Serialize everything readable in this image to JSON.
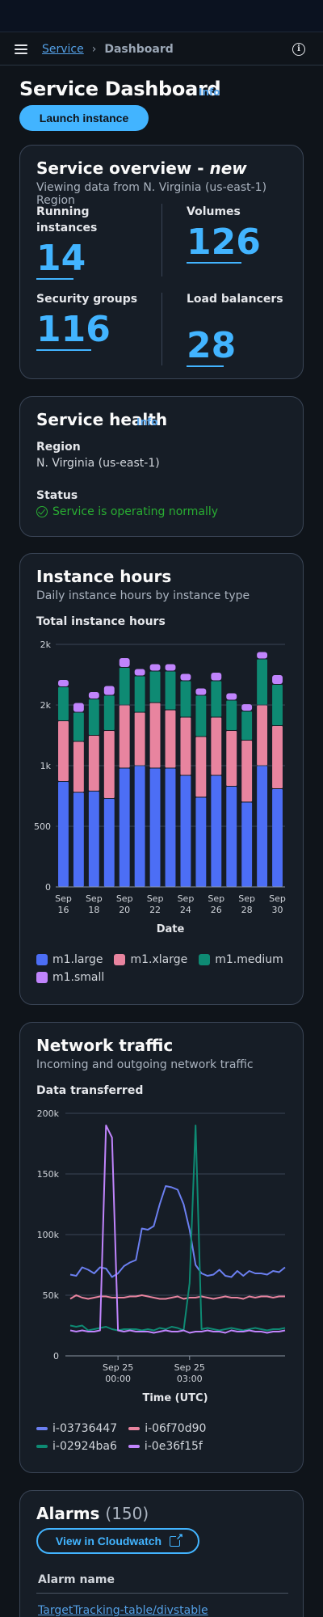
{
  "nav": {
    "breadcrumb_service": "Service",
    "breadcrumb_current": "Dashboard",
    "info_icon": "info-icon"
  },
  "page": {
    "title": "Service Dashboard",
    "info": "Info",
    "launch_label": "Launch instance"
  },
  "overview": {
    "title": "Service overview - ",
    "title_em": "new",
    "subtitle": "Viewing data from N. Virginia (us-east-1) Region",
    "stats": [
      {
        "label": "Running instances",
        "value": "14"
      },
      {
        "label": "Volumes",
        "value": "126"
      },
      {
        "label": "Security groups",
        "value": "116"
      },
      {
        "label": "Load balancers",
        "value": "28"
      }
    ]
  },
  "health": {
    "title": "Service health",
    "info": "Info",
    "region_label": "Region",
    "region_value": "N. Virginia (us-east-1)",
    "status_label": "Status",
    "status_value": "Service is operating normally",
    "status_color": "#29ad32"
  },
  "instance_hours": {
    "title": "Instance hours",
    "subtitle": "Daily instance hours by instance type",
    "chart_label": "Total instance hours"
  },
  "network": {
    "title": "Network traffic",
    "subtitle": "Incoming and outgoing network traffic",
    "chart_label": "Data transferred"
  },
  "alarms": {
    "title": "Alarms",
    "count": "(150)",
    "cloudwatch_label": "View in Cloudwatch",
    "column_header": "Alarm name",
    "first_row": "TargetTracking-table/divstable"
  },
  "chart_data": [
    {
      "type": "bar",
      "stacked": true,
      "categories": [
        "Sep 16",
        "Sep 17",
        "Sep 18",
        "Sep 19",
        "Sep 20",
        "Sep 21",
        "Sep 22",
        "Sep 23",
        "Sep 24",
        "Sep 25",
        "Sep 26",
        "Sep 27",
        "Sep 28",
        "Sep 29",
        "Sep 30"
      ],
      "tick_labels": [
        {
          "index": 0,
          "line1": "Sep",
          "line2": "16"
        },
        {
          "index": 2,
          "line1": "Sep",
          "line2": "18"
        },
        {
          "index": 4,
          "line1": "Sep",
          "line2": "20"
        },
        {
          "index": 6,
          "line1": "Sep",
          "line2": "22"
        },
        {
          "index": 8,
          "line1": "Sep",
          "line2": "24"
        },
        {
          "index": 10,
          "line1": "Sep",
          "line2": "26"
        },
        {
          "index": 12,
          "line1": "Sep",
          "line2": "28"
        },
        {
          "index": 14,
          "line1": "Sep",
          "line2": "30"
        }
      ],
      "series": [
        {
          "name": "m1.large",
          "color": "#4c6ef5",
          "values": [
            870,
            780,
            790,
            730,
            980,
            1000,
            980,
            980,
            920,
            740,
            920,
            830,
            700,
            1000,
            810
          ]
        },
        {
          "name": "m1.xlarge",
          "color": "#e8849f",
          "values": [
            500,
            420,
            460,
            560,
            520,
            440,
            540,
            480,
            480,
            500,
            480,
            460,
            510,
            500,
            520
          ]
        },
        {
          "name": "m1.medium",
          "color": "#0e8a73",
          "values": [
            280,
            240,
            300,
            290,
            310,
            300,
            260,
            320,
            300,
            340,
            300,
            250,
            240,
            380,
            340
          ]
        },
        {
          "name": "m1.small",
          "color": "#c084fc",
          "values": [
            60,
            80,
            60,
            80,
            80,
            60,
            60,
            60,
            60,
            60,
            70,
            60,
            60,
            60,
            80
          ]
        }
      ],
      "title": "Total instance hours",
      "xlabel": "Date",
      "ylabel": "",
      "yticks": [
        {
          "v": 0,
          "label": "0"
        },
        {
          "v": 500,
          "label": "500"
        },
        {
          "v": 1000,
          "label": "1k"
        },
        {
          "v": 1500,
          "label": "2k"
        },
        {
          "v": 2000,
          "label": "2k"
        }
      ],
      "ylim": [
        0,
        2000
      ],
      "grid": true,
      "legend": "bottom"
    },
    {
      "type": "line",
      "x_count": 37,
      "x_tick_labels": [
        {
          "index": 8,
          "line1": "Sep 25",
          "line2": "00:00"
        },
        {
          "index": 20,
          "line1": "Sep 25",
          "line2": "03:00"
        }
      ],
      "series": [
        {
          "name": "i-03736447",
          "color": "#6b7ff0",
          "values": [
            67000,
            66000,
            73000,
            71000,
            68000,
            73000,
            72000,
            65000,
            68000,
            74000,
            77000,
            79000,
            105000,
            104000,
            107000,
            125000,
            140000,
            139000,
            137000,
            125000,
            104000,
            75000,
            68000,
            66000,
            67000,
            71000,
            66000,
            65000,
            70000,
            66000,
            70000,
            68000,
            68000,
            67000,
            70000,
            69000,
            73000
          ]
        },
        {
          "name": "i-06f70d90",
          "color": "#e8849f",
          "values": [
            47000,
            50000,
            48000,
            47000,
            48000,
            49000,
            49000,
            48000,
            48000,
            48000,
            49000,
            49000,
            50000,
            49000,
            48000,
            47000,
            47000,
            48000,
            49000,
            47000,
            48000,
            48000,
            49000,
            48000,
            47000,
            48000,
            49000,
            48000,
            48000,
            47000,
            49000,
            48000,
            49000,
            49000,
            48000,
            49000,
            49000
          ]
        },
        {
          "name": "i-02924ba6",
          "color": "#0e8a73",
          "values": [
            25000,
            24000,
            25000,
            21000,
            22000,
            23000,
            24000,
            22000,
            21000,
            22000,
            22000,
            22000,
            21000,
            22000,
            21000,
            23000,
            22000,
            24000,
            23000,
            21000,
            60000,
            190000,
            22000,
            23000,
            22000,
            21000,
            22000,
            23000,
            22000,
            21000,
            22000,
            23000,
            22000,
            21000,
            22000,
            22000,
            23000
          ]
        },
        {
          "name": "i-0e36f15f",
          "color": "#c084fc",
          "values": [
            21000,
            20000,
            21000,
            20000,
            20000,
            21000,
            190000,
            180000,
            21000,
            20000,
            21000,
            20000,
            20000,
            20000,
            19000,
            20000,
            21000,
            20000,
            20000,
            21000,
            19000,
            20000,
            20000,
            21000,
            20000,
            20000,
            19000,
            21000,
            20000,
            20000,
            21000,
            20000,
            20000,
            19000,
            20000,
            20000,
            21000
          ]
        }
      ],
      "title": "Data transferred",
      "xlabel": "Time (UTC)",
      "ylabel": "",
      "yticks": [
        {
          "v": 0,
          "label": "0"
        },
        {
          "v": 50000,
          "label": "50k"
        },
        {
          "v": 100000,
          "label": "100k"
        },
        {
          "v": 150000,
          "label": "150k"
        },
        {
          "v": 200000,
          "label": "200k"
        }
      ],
      "ylim": [
        0,
        200000
      ],
      "grid": true,
      "legend": "bottom"
    }
  ]
}
